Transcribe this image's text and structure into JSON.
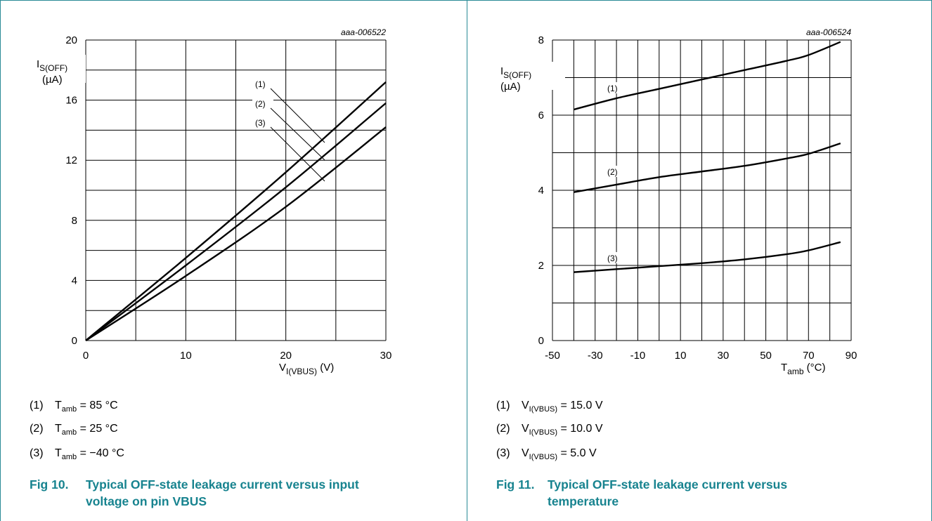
{
  "chart_data": [
    {
      "type": "line",
      "code": "aaa-006522",
      "ylabel": {
        "main": "I",
        "sub": "S(OFF)",
        "unit": "(µA)"
      },
      "xlabel": {
        "main": "V",
        "sub": "I(VBUS)",
        "unit": " (V)"
      },
      "xlim": [
        0,
        30
      ],
      "ylim": [
        0,
        20
      ],
      "xticks": [
        0,
        10,
        20,
        30
      ],
      "yticks": [
        0,
        4,
        8,
        12,
        16,
        20
      ],
      "grid": true,
      "series": [
        {
          "name": "(1)",
          "x": [
            0,
            10,
            20,
            30
          ],
          "y": [
            0,
            5.5,
            11.2,
            17.2
          ]
        },
        {
          "name": "(2)",
          "x": [
            0,
            10,
            20,
            30
          ],
          "y": [
            0,
            5.0,
            10.2,
            15.8
          ]
        },
        {
          "name": "(3)",
          "x": [
            0,
            10,
            20,
            30
          ],
          "y": [
            0,
            4.3,
            8.9,
            14.2
          ]
        }
      ],
      "legend": [
        {
          "num": "(1)",
          "label_main": "T",
          "label_sub": "amb",
          "label_rest": " = 85 °C"
        },
        {
          "num": "(2)",
          "label_main": "T",
          "label_sub": "amb",
          "label_rest": " = 25 °C"
        },
        {
          "num": "(3)",
          "label_main": "T",
          "label_sub": "amb",
          "label_rest": " = −40 °C"
        }
      ]
    },
    {
      "type": "line",
      "code": "aaa-006524",
      "ylabel": {
        "main": "I",
        "sub": "S(OFF)",
        "unit": "(µA)"
      },
      "xlabel": {
        "main": "T",
        "sub": "amb",
        "unit": " (°C)"
      },
      "xlim": [
        -50,
        90
      ],
      "ylim": [
        0,
        8
      ],
      "xticks": [
        -50,
        -30,
        -10,
        10,
        30,
        50,
        70,
        90
      ],
      "yticks": [
        0,
        2,
        4,
        6,
        8
      ],
      "grid": true,
      "series": [
        {
          "name": "(1)",
          "x": [
            -40,
            -20,
            0,
            20,
            40,
            60,
            70,
            85
          ],
          "y": [
            6.15,
            6.45,
            6.7,
            6.95,
            7.2,
            7.45,
            7.6,
            7.95
          ]
        },
        {
          "name": "(2)",
          "x": [
            -40,
            -20,
            0,
            20,
            40,
            60,
            70,
            85
          ],
          "y": [
            3.95,
            4.15,
            4.35,
            4.5,
            4.65,
            4.85,
            4.97,
            5.25
          ]
        },
        {
          "name": "(3)",
          "x": [
            -40,
            -20,
            0,
            20,
            40,
            60,
            70,
            85
          ],
          "y": [
            1.82,
            1.9,
            1.98,
            2.06,
            2.16,
            2.3,
            2.4,
            2.62
          ]
        }
      ],
      "legend": [
        {
          "num": "(1)",
          "label_main": "V",
          "label_sub": "I(VBUS)",
          "label_rest": " = 15.0 V"
        },
        {
          "num": "(2)",
          "label_main": "V",
          "label_sub": "I(VBUS)",
          "label_rest": " = 10.0 V"
        },
        {
          "num": "(3)",
          "label_main": "V",
          "label_sub": "I(VBUS)",
          "label_rest": " = 5.0 V"
        }
      ]
    }
  ],
  "figures": [
    {
      "label": "Fig 10.",
      "title_line1": "Typical OFF-state leakage current versus input",
      "title_line2": "voltage on pin VBUS"
    },
    {
      "label": "Fig 11.",
      "title_line1": "Typical OFF-state leakage current versus",
      "title_line2": "temperature"
    }
  ],
  "colors": {
    "rule": "#2a8a96",
    "caption": "#17838f",
    "line": "#000000"
  }
}
